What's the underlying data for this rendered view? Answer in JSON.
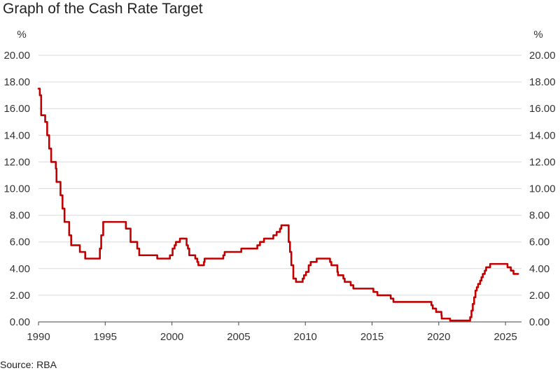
{
  "title": "Graph of the Cash Rate Target",
  "source": "Source: RBA",
  "colors": {
    "series": "#c00000",
    "grid": "#d9d9d9",
    "axis": "#444444",
    "text": "#333333"
  },
  "chart_data": {
    "type": "line",
    "title": "Graph of the Cash Rate Target",
    "xlabel": "",
    "ylabel": "%",
    "ylabel_right": "%",
    "xlim": [
      1990,
      2026.2
    ],
    "ylim": [
      0,
      20
    ],
    "grid": true,
    "x_ticks": [
      1990,
      1995,
      2000,
      2005,
      2010,
      2015,
      2020,
      2025
    ],
    "x_tick_labels": [
      "1990",
      "1995",
      "2000",
      "2005",
      "2010",
      "2015",
      "2020",
      "2025"
    ],
    "y_ticks": [
      0,
      2,
      4,
      6,
      8,
      10,
      12,
      14,
      16,
      18,
      20
    ],
    "y_tick_labels": [
      "0.00",
      "2.00",
      "4.00",
      "6.00",
      "8.00",
      "10.00",
      "12.00",
      "14.00",
      "16.00",
      "18.00",
      "20.00"
    ],
    "series": [
      {
        "name": "Cash Rate Target",
        "step": true,
        "points": [
          [
            1990.0,
            17.5
          ],
          [
            1990.1,
            17.0
          ],
          [
            1990.2,
            15.5
          ],
          [
            1990.5,
            15.0
          ],
          [
            1990.65,
            14.0
          ],
          [
            1990.8,
            13.0
          ],
          [
            1990.95,
            12.0
          ],
          [
            1991.3,
            11.5
          ],
          [
            1991.35,
            10.5
          ],
          [
            1991.65,
            9.5
          ],
          [
            1991.8,
            8.5
          ],
          [
            1991.95,
            7.5
          ],
          [
            1992.3,
            6.5
          ],
          [
            1992.45,
            5.75
          ],
          [
            1993.1,
            5.25
          ],
          [
            1993.5,
            4.75
          ],
          [
            1994.6,
            5.5
          ],
          [
            1994.7,
            6.5
          ],
          [
            1994.85,
            7.5
          ],
          [
            1996.55,
            7.0
          ],
          [
            1996.9,
            6.0
          ],
          [
            1997.4,
            5.5
          ],
          [
            1997.55,
            5.0
          ],
          [
            1998.9,
            4.75
          ],
          [
            1999.85,
            5.0
          ],
          [
            2000.05,
            5.5
          ],
          [
            2000.2,
            5.75
          ],
          [
            2000.3,
            6.0
          ],
          [
            2000.6,
            6.25
          ],
          [
            2001.1,
            5.75
          ],
          [
            2001.2,
            5.5
          ],
          [
            2001.3,
            5.0
          ],
          [
            2001.75,
            4.75
          ],
          [
            2001.9,
            4.5
          ],
          [
            2001.98,
            4.25
          ],
          [
            2002.4,
            4.5
          ],
          [
            2002.45,
            4.75
          ],
          [
            2003.85,
            5.0
          ],
          [
            2003.95,
            5.25
          ],
          [
            2005.2,
            5.5
          ],
          [
            2006.4,
            5.75
          ],
          [
            2006.6,
            6.0
          ],
          [
            2006.9,
            6.25
          ],
          [
            2007.6,
            6.5
          ],
          [
            2007.85,
            6.75
          ],
          [
            2008.1,
            7.0
          ],
          [
            2008.2,
            7.25
          ],
          [
            2008.75,
            6.0
          ],
          [
            2008.85,
            5.25
          ],
          [
            2008.95,
            4.25
          ],
          [
            2009.1,
            3.25
          ],
          [
            2009.3,
            3.0
          ],
          [
            2009.8,
            3.25
          ],
          [
            2009.9,
            3.5
          ],
          [
            2010.05,
            3.75
          ],
          [
            2010.25,
            4.25
          ],
          [
            2010.4,
            4.5
          ],
          [
            2010.85,
            4.75
          ],
          [
            2011.85,
            4.5
          ],
          [
            2011.95,
            4.25
          ],
          [
            2012.4,
            3.75
          ],
          [
            2012.45,
            3.5
          ],
          [
            2012.85,
            3.25
          ],
          [
            2012.95,
            3.0
          ],
          [
            2013.4,
            2.75
          ],
          [
            2013.6,
            2.5
          ],
          [
            2015.1,
            2.25
          ],
          [
            2015.4,
            2.0
          ],
          [
            2016.4,
            1.75
          ],
          [
            2016.6,
            1.5
          ],
          [
            2019.45,
            1.25
          ],
          [
            2019.55,
            1.0
          ],
          [
            2019.8,
            0.75
          ],
          [
            2020.2,
            0.5
          ],
          [
            2020.22,
            0.25
          ],
          [
            2020.85,
            0.1
          ],
          [
            2022.35,
            0.35
          ],
          [
            2022.45,
            0.85
          ],
          [
            2022.55,
            1.35
          ],
          [
            2022.65,
            1.85
          ],
          [
            2022.75,
            2.35
          ],
          [
            2022.85,
            2.6
          ],
          [
            2022.95,
            2.85
          ],
          [
            2023.1,
            3.1
          ],
          [
            2023.2,
            3.35
          ],
          [
            2023.3,
            3.6
          ],
          [
            2023.45,
            3.85
          ],
          [
            2023.55,
            4.1
          ],
          [
            2023.85,
            4.35
          ],
          [
            2025.15,
            4.1
          ],
          [
            2025.4,
            3.85
          ],
          [
            2025.6,
            3.6
          ],
          [
            2025.95,
            3.6
          ]
        ]
      }
    ]
  }
}
